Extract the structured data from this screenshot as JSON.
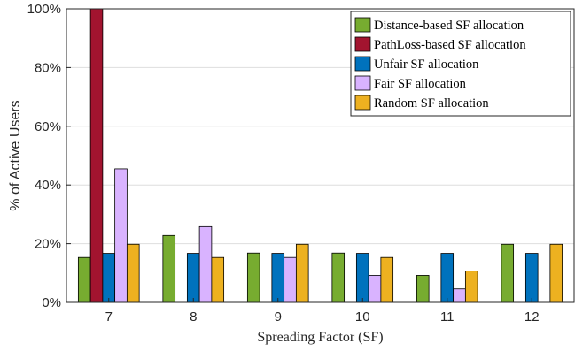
{
  "chart_data": {
    "type": "bar",
    "categories": [
      "7",
      "8",
      "9",
      "10",
      "11",
      "12"
    ],
    "series": [
      {
        "name": "Distance-based SF allocation",
        "color": "#77AC30",
        "values": [
          15.3,
          22.8,
          16.8,
          16.8,
          9.2,
          19.8
        ]
      },
      {
        "name": "PathLoss-based SF allocation",
        "color": "#A2142F",
        "values": [
          100,
          0,
          0,
          0,
          0,
          0
        ]
      },
      {
        "name": "Unfair SF allocation",
        "color": "#0072BD",
        "values": [
          16.7,
          16.7,
          16.7,
          16.7,
          16.7,
          16.7
        ]
      },
      {
        "name": "Fair SF allocation",
        "color": "#D9B3FF",
        "values": [
          45.5,
          25.8,
          15.3,
          9.2,
          4.6,
          0
        ]
      },
      {
        "name": "Random SF allocation",
        "color": "#EDB120",
        "values": [
          19.8,
          15.3,
          19.8,
          15.3,
          10.7,
          19.8
        ]
      }
    ],
    "xlabel": "Spreading Factor (SF)",
    "ylabel": "% of Active Users",
    "ylim": [
      0,
      100
    ],
    "yticks": [
      "0%",
      "20%",
      "40%",
      "60%",
      "80%",
      "100%"
    ],
    "grid": true,
    "legend_position": "top-right"
  }
}
